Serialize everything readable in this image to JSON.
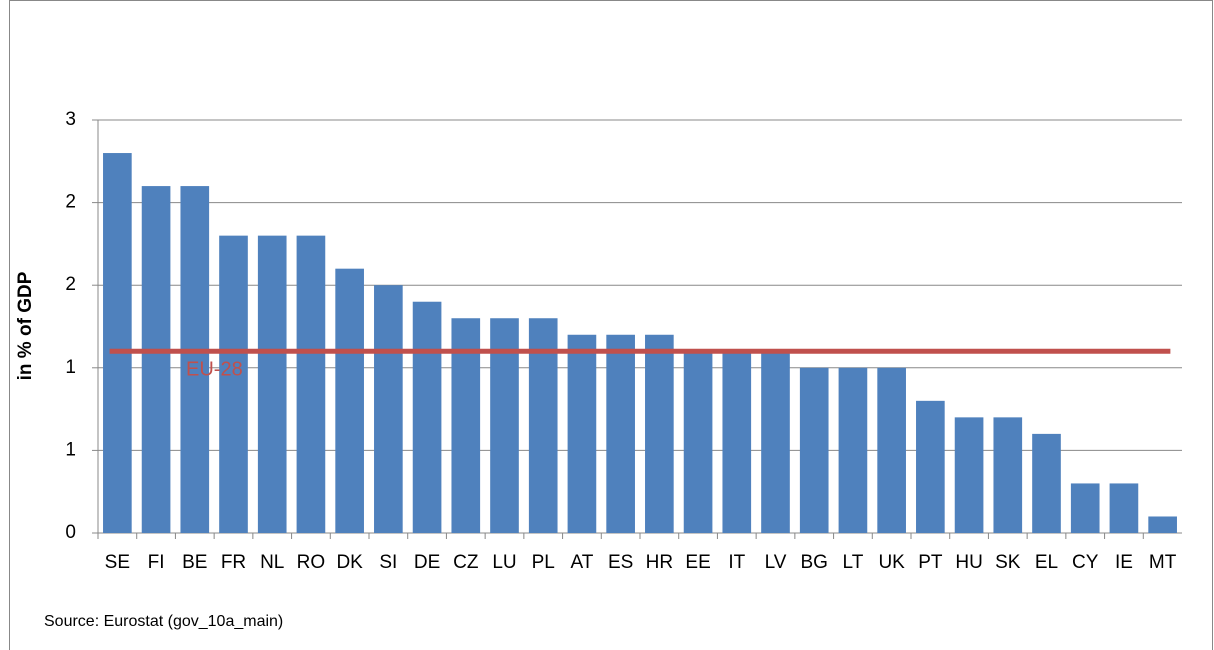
{
  "chart_data": {
    "type": "bar",
    "y_label": "in % of GDP",
    "source": "Source: Eurostat (gov_10a_main)",
    "categories": [
      "SE",
      "FI",
      "BE",
      "FR",
      "NL",
      "RO",
      "DK",
      "SI",
      "DE",
      "CZ",
      "LU",
      "PL",
      "AT",
      "ES",
      "HR",
      "EE",
      "IT",
      "LV",
      "BG",
      "LT",
      "UK",
      "PT",
      "HU",
      "SK",
      "EL",
      "CY",
      "IE",
      "MT"
    ],
    "values": [
      2.3,
      2.1,
      2.1,
      1.8,
      1.8,
      1.8,
      1.6,
      1.5,
      1.4,
      1.3,
      1.3,
      1.3,
      1.2,
      1.2,
      1.2,
      1.1,
      1.1,
      1.1,
      1.0,
      1.0,
      1.0,
      0.8,
      0.7,
      0.7,
      0.6,
      0.3,
      0.3,
      0.1
    ],
    "color": "#4f81bd",
    "reference_line": {
      "name": "EU-28",
      "value": 1.1,
      "color": "#c0504d"
    },
    "ylim": [
      0,
      2.5
    ],
    "yticks": [
      0,
      {
        "value": 0.5,
        "label": "1"
      },
      {
        "value": 1,
        "label": "1"
      },
      {
        "value": 1.5,
        "label": "2"
      },
      {
        "value": 2,
        "label": "2"
      },
      {
        "value": 2.5,
        "label": "3"
      }
    ],
    "grid": true
  }
}
